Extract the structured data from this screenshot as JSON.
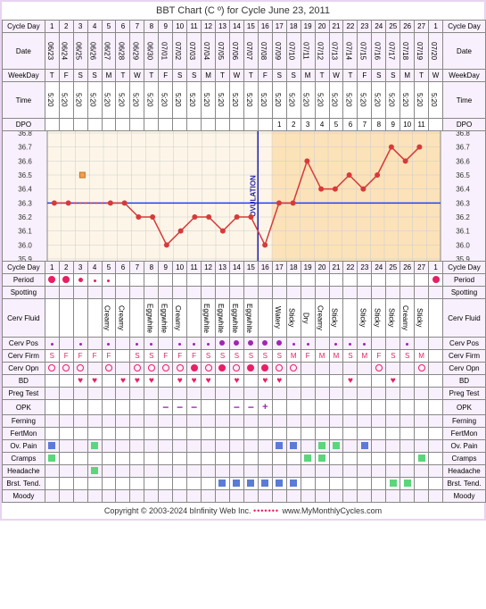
{
  "title": "BBT Chart (C º) for Cycle June 23, 2011",
  "labels": {
    "cycleDay": "Cycle Day",
    "date": "Date",
    "weekday": "WeekDay",
    "time": "Time",
    "dpo": "DPO",
    "period": "Period",
    "spotting": "Spotting",
    "cervFluid": "Cerv Fluid",
    "cervPos": "Cerv Pos",
    "cervFirm": "Cerv Firm",
    "cervOpn": "Cerv Opn",
    "bd": "BD",
    "pregTest": "Preg Test",
    "opk": "OPK",
    "ferning": "Ferning",
    "fertMon": "FertMon",
    "ovPain": "Ov. Pain",
    "cramps": "Cramps",
    "headache": "Headache",
    "brstTend": "Brst. Tend.",
    "moody": "Moody"
  },
  "cycleDays": [
    1,
    2,
    3,
    4,
    5,
    6,
    7,
    8,
    9,
    10,
    11,
    12,
    13,
    14,
    15,
    16,
    17,
    18,
    19,
    20,
    21,
    22,
    23,
    24,
    25,
    26,
    27,
    1
  ],
  "dates": [
    "06/23",
    "06/24",
    "06/25",
    "06/26",
    "06/27",
    "06/28",
    "06/29",
    "06/30",
    "07/01",
    "07/02",
    "07/03",
    "07/04",
    "07/05",
    "07/06",
    "07/07",
    "07/08",
    "07/09",
    "07/10",
    "07/11",
    "07/12",
    "07/13",
    "07/14",
    "07/15",
    "07/16",
    "07/17",
    "07/18",
    "07/19",
    "07/20"
  ],
  "weekdays": [
    "T",
    "F",
    "S",
    "S",
    "M",
    "T",
    "W",
    "T",
    "F",
    "S",
    "S",
    "M",
    "T",
    "W",
    "T",
    "F",
    "S",
    "S",
    "M",
    "T",
    "W",
    "T",
    "F",
    "S",
    "S",
    "M",
    "T",
    "W"
  ],
  "times": [
    "5:20",
    "5:20",
    "5:20",
    "5:20",
    "5:20",
    "5:20",
    "5:20",
    "5:20",
    "5:20",
    "5:20",
    "5:20",
    "5:20",
    "5:20",
    "5:20",
    "5:20",
    "5:20",
    "5:20",
    "5:20",
    "5:20",
    "5:20",
    "5:20",
    "5:20",
    "5:20",
    "5:20",
    "5:20",
    "5:20",
    "5:20",
    "5:20"
  ],
  "dpo": [
    "",
    "",
    "",
    "",
    "",
    "",
    "",
    "",
    "",
    "",
    "",
    "",
    "",
    "",
    "",
    "",
    "1",
    "2",
    "3",
    "4",
    "5",
    "6",
    "7",
    "8",
    "9",
    "10",
    "11",
    ""
  ],
  "yTicks": [
    36.8,
    36.7,
    36.6,
    36.5,
    36.4,
    36.3,
    36.2,
    36.1,
    36.0,
    35.9
  ],
  "chart": {
    "coverline": 36.3,
    "ovulationDay": 16,
    "lutealStart": 17,
    "temps": [
      36.3,
      36.3,
      null,
      null,
      36.3,
      36.3,
      36.2,
      36.2,
      36.0,
      36.1,
      36.2,
      36.2,
      36.1,
      36.2,
      36.2,
      36.0,
      36.3,
      36.3,
      36.6,
      36.4,
      36.4,
      36.5,
      36.4,
      36.5,
      36.7,
      36.6,
      36.7,
      null
    ],
    "skipDay3": true,
    "lineColor": "#d63a3a",
    "pointColor": "#d63a3a",
    "coverlineColor": "#1e40ff",
    "ovulationColor": "#1e1eae",
    "bgLuteal": "#fce2b8",
    "bgFollicular": "#fdf6e8",
    "gridColor": "#cccccc"
  },
  "period": [
    "full",
    "full",
    "small",
    "tiny",
    "tiny",
    "",
    "",
    "",
    "",
    "",
    "",
    "",
    "",
    "",
    "",
    "",
    "",
    "",
    "",
    "",
    "",
    "",
    "",
    "",
    "",
    "",
    "",
    "full"
  ],
  "cervFluid": [
    "",
    "",
    "",
    "",
    "Creamy",
    "Creamy",
    "",
    "Eggwhite",
    "Eggwhite",
    "Creamy",
    "",
    "Eggwhite",
    "Eggwhite",
    "Eggwhite",
    "Eggwhite",
    "",
    "Watery",
    "Sticky",
    "Dry",
    "Creamy",
    "Sticky",
    "",
    "Sticky",
    "Sticky",
    "Sticky",
    "Creamy",
    "Sticky",
    ""
  ],
  "cervPos": [
    "sm",
    "",
    "sm",
    "",
    "sm",
    "",
    "sm",
    "sm",
    "",
    "sm",
    "sm",
    "sm",
    "lg",
    "lg",
    "lg",
    "lg",
    "lg",
    "sm",
    "sm",
    "",
    "sm",
    "sm",
    "sm",
    "",
    "",
    "sm",
    "",
    ""
  ],
  "cervFirm": [
    "S",
    "F",
    "F",
    "F",
    "F",
    "",
    "S",
    "S",
    "F",
    "F",
    "F",
    "S",
    "S",
    "S",
    "S",
    "S",
    "S",
    "M",
    "F",
    "M",
    "M",
    "S",
    "M",
    "F",
    "S",
    "S",
    "M",
    ""
  ],
  "cervOpn": [
    "O",
    "O",
    "O",
    "",
    "O",
    "",
    "O",
    "O",
    "O",
    "O",
    "F",
    "O",
    "F",
    "O",
    "F",
    "F",
    "O",
    "O",
    "",
    "",
    "",
    "",
    "",
    "O",
    "",
    "",
    "O",
    ""
  ],
  "bd": [
    "",
    "",
    "H",
    "H",
    "",
    "H",
    "H",
    "H",
    "",
    "H",
    "H",
    "H",
    "",
    "H",
    "",
    "H",
    "H",
    "",
    "",
    "",
    "",
    "H",
    "",
    "",
    "H",
    "",
    "",
    ""
  ],
  "opk": [
    "",
    "",
    "",
    "",
    "",
    "",
    "",
    "",
    "-",
    "-",
    "-",
    "",
    "",
    "-",
    "-",
    "+",
    "",
    "",
    "",
    "",
    "",
    "",
    "",
    "",
    "",
    "",
    "",
    ""
  ],
  "ovPain": [
    "B",
    "",
    "",
    "G",
    "",
    "",
    "",
    "",
    "",
    "",
    "",
    "",
    "",
    "",
    "",
    "",
    "B",
    "B",
    "",
    "G",
    "G",
    "",
    "B",
    "",
    "",
    "",
    "",
    ""
  ],
  "cramps": [
    "G",
    "",
    "",
    "",
    "",
    "",
    "",
    "",
    "",
    "",
    "",
    "",
    "",
    "",
    "",
    "",
    "",
    "",
    "G",
    "G",
    "",
    "",
    "",
    "",
    "",
    "",
    "G",
    ""
  ],
  "headache": [
    "",
    "",
    "",
    "G",
    "",
    "",
    "",
    "",
    "",
    "",
    "",
    "",
    "",
    "",
    "",
    "",
    "",
    "",
    "",
    "",
    "",
    "",
    "",
    "",
    "",
    "",
    "",
    ""
  ],
  "brstTend": [
    "",
    "",
    "",
    "",
    "",
    "",
    "",
    "",
    "",
    "",
    "",
    "",
    "B",
    "B",
    "B",
    "B",
    "B",
    "B",
    "",
    "",
    "",
    "",
    "",
    "",
    "G",
    "G",
    "",
    ""
  ],
  "footer": {
    "copyright": "Copyright © 2003-2024 bInfinity Web Inc.",
    "site": "www.MyMonthlyCycles.com"
  }
}
